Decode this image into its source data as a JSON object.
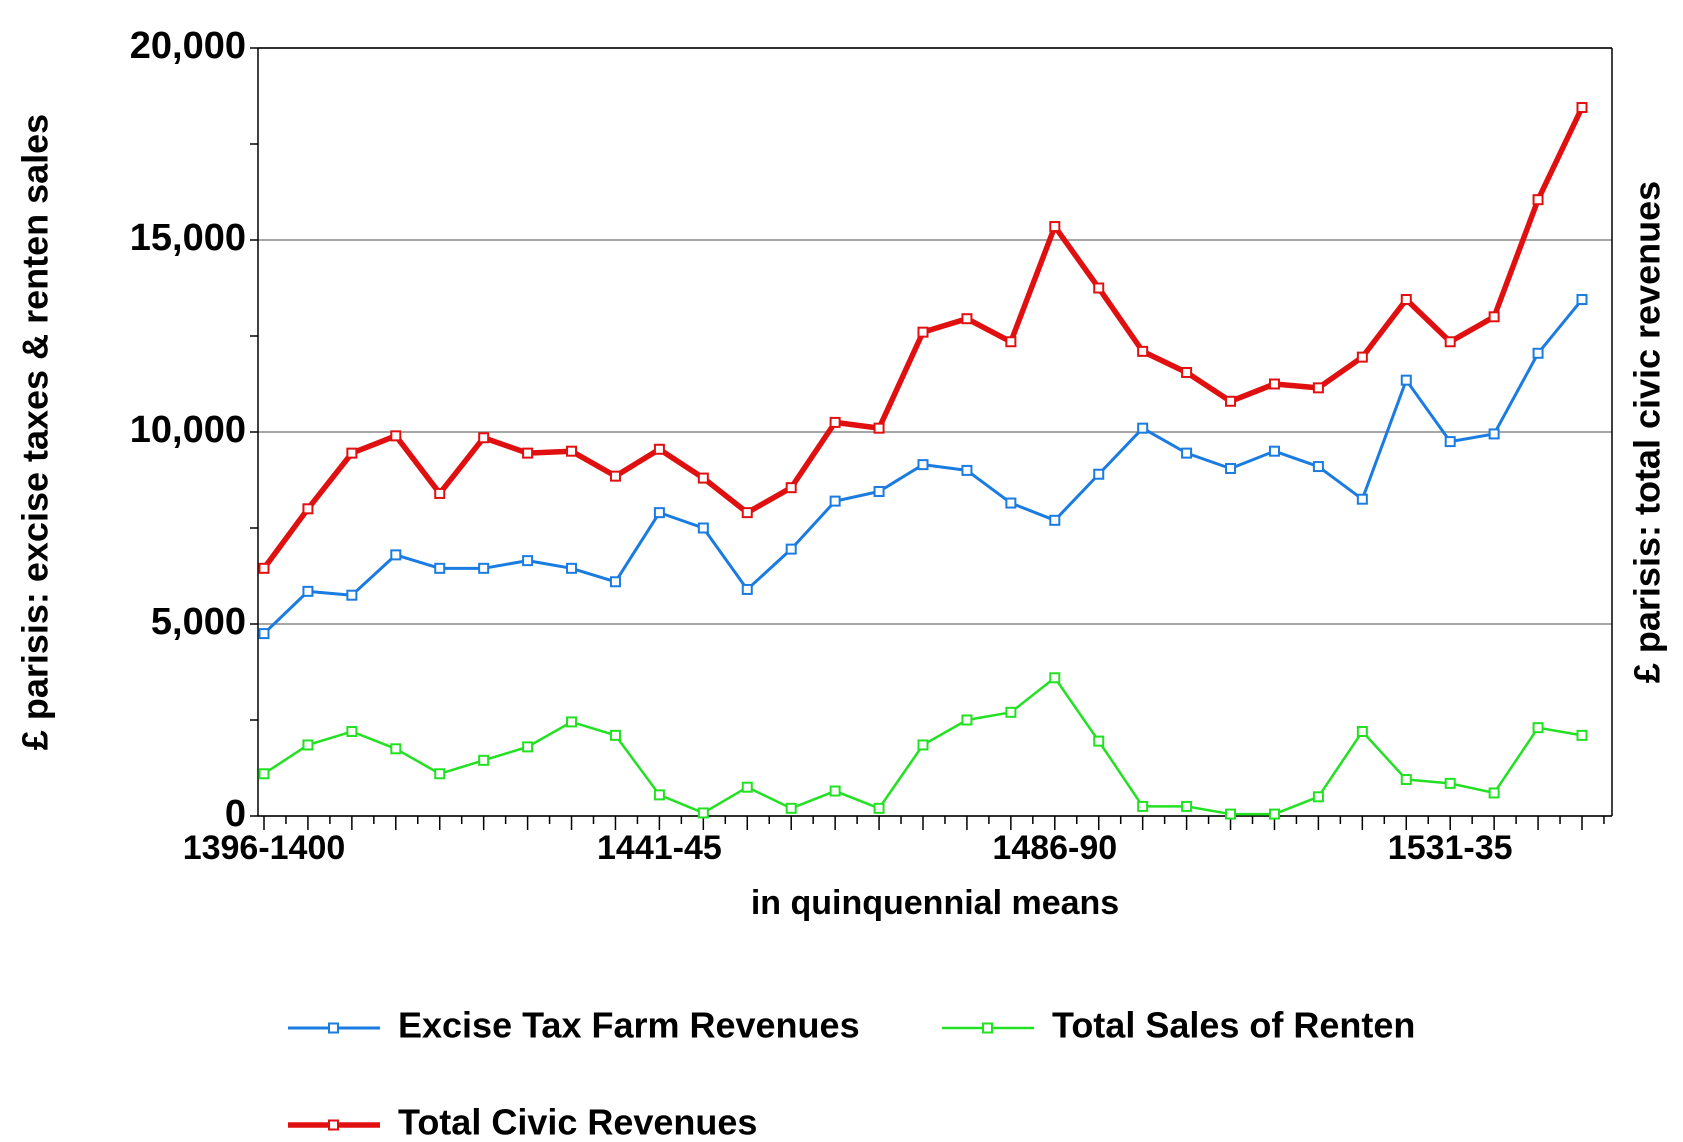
{
  "chart_data": {
    "type": "line",
    "ylabel": "£ parisis: excise taxes & renten sales",
    "y2label": "£ parisis: total civic revenues",
    "xlabel": "in quinquennial means",
    "categories": [
      "1396-1400",
      null,
      null,
      null,
      null,
      null,
      null,
      null,
      null,
      "1441-45",
      null,
      null,
      null,
      null,
      null,
      null,
      null,
      null,
      "1486-90",
      null,
      null,
      null,
      null,
      null,
      null,
      null,
      null,
      "1531-35",
      null,
      null,
      null
    ],
    "ylim": [
      0,
      20000
    ],
    "yticks": [
      0,
      {
        "value": 5000,
        "label": "5,000"
      },
      {
        "value": 10000,
        "label": "10,000"
      },
      {
        "value": 15000,
        "label": "15,000"
      },
      {
        "value": 20000,
        "label": "20,000"
      }
    ],
    "grid": true,
    "legend": "bottom",
    "series": [
      {
        "name": "Excise Tax Farm Revenues",
        "color": "#1a7be0",
        "values": [
          4750,
          5850,
          5750,
          6800,
          6450,
          6450,
          6650,
          6450,
          6100,
          7900,
          7500,
          5900,
          6950,
          8200,
          8450,
          9150,
          9000,
          8150,
          7700,
          8900,
          10100,
          9450,
          9050,
          9500,
          9100,
          8250,
          11350,
          9750,
          9950,
          12050,
          13450
        ]
      },
      {
        "name": "Total Sales of Renten",
        "color": "#22e022",
        "values": [
          1100,
          1850,
          2200,
          1750,
          1100,
          1450,
          1800,
          2450,
          2100,
          550,
          80,
          750,
          200,
          650,
          200,
          1850,
          2500,
          2700,
          3600,
          1950,
          250,
          250,
          50,
          50,
          500,
          2200,
          950,
          850,
          600,
          2300,
          2100
        ]
      },
      {
        "name": "Total Civic Revenues",
        "color": "#e01010",
        "values": [
          6450,
          8000,
          9450,
          9900,
          8400,
          9850,
          9450,
          9500,
          8850,
          9550,
          8800,
          7900,
          8550,
          10250,
          10100,
          12600,
          12950,
          12350,
          15350,
          13750,
          12100,
          11550,
          10800,
          11250,
          11150,
          11950,
          13450,
          12350,
          13000,
          16050,
          18450
        ]
      }
    ]
  }
}
